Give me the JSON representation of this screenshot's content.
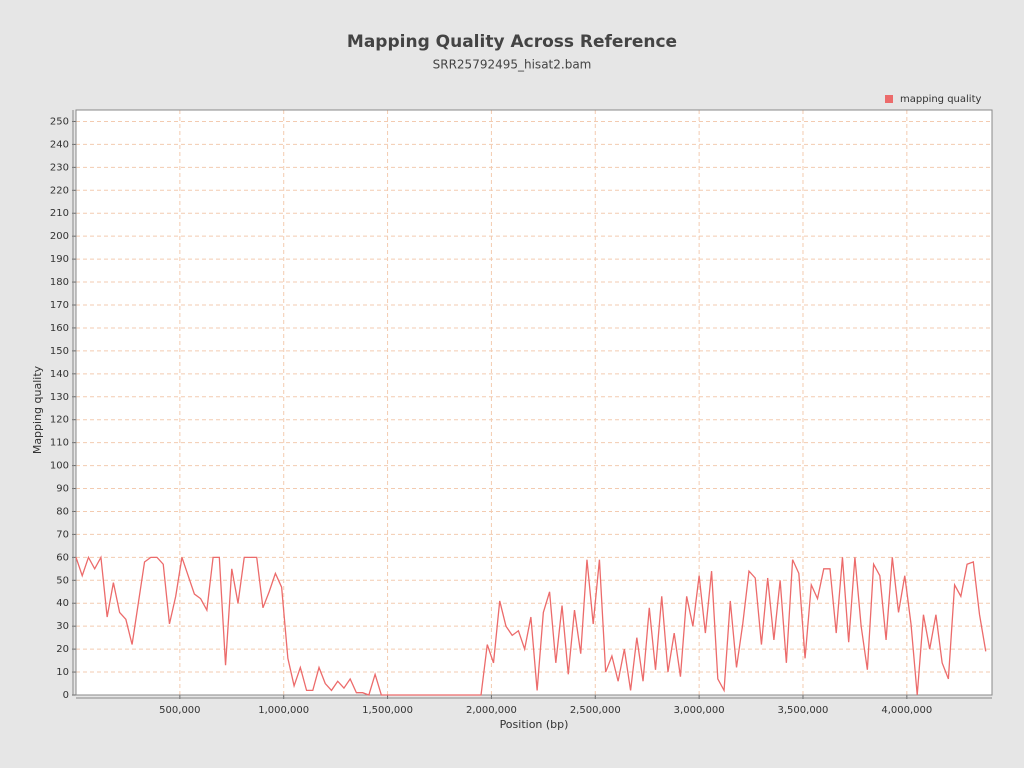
{
  "chart_data": {
    "type": "line",
    "title": "Mapping Quality Across Reference",
    "subtitle": "SRR25792495_hisat2.bam",
    "x_label": "Position (bp)",
    "y_label": "Mapping quality",
    "legend_position": "top-right",
    "grid": true,
    "x": [
      0,
      30000,
      60000,
      90000,
      120000,
      150000,
      180000,
      210000,
      240000,
      270000,
      300000,
      330000,
      360000,
      390000,
      420000,
      450000,
      480000,
      510000,
      540000,
      570000,
      600000,
      630000,
      660000,
      690000,
      720000,
      750000,
      780000,
      810000,
      840000,
      870000,
      900000,
      930000,
      960000,
      990000,
      1020000,
      1050000,
      1080000,
      1110000,
      1140000,
      1170000,
      1200000,
      1230000,
      1260000,
      1290000,
      1320000,
      1350000,
      1380000,
      1410000,
      1440000,
      1470000,
      1500000,
      1530000,
      1560000,
      1590000,
      1620000,
      1650000,
      1680000,
      1710000,
      1740000,
      1770000,
      1800000,
      1830000,
      1860000,
      1890000,
      1920000,
      1950000,
      1980000,
      2010000,
      2040000,
      2070000,
      2100000,
      2130000,
      2160000,
      2190000,
      2220000,
      2250000,
      2280000,
      2310000,
      2340000,
      2370000,
      2400000,
      2430000,
      2460000,
      2490000,
      2520000,
      2550000,
      2580000,
      2610000,
      2640000,
      2670000,
      2700000,
      2730000,
      2760000,
      2790000,
      2820000,
      2850000,
      2880000,
      2910000,
      2940000,
      2970000,
      3000000,
      3030000,
      3060000,
      3090000,
      3120000,
      3150000,
      3180000,
      3210000,
      3240000,
      3270000,
      3300000,
      3330000,
      3360000,
      3390000,
      3420000,
      3450000,
      3480000,
      3510000,
      3540000,
      3570000,
      3600000,
      3630000,
      3660000,
      3690000,
      3720000,
      3750000,
      3780000,
      3810000,
      3840000,
      3870000,
      3900000,
      3930000,
      3960000,
      3990000,
      4020000,
      4050000,
      4080000,
      4110000,
      4140000,
      4170000,
      4200000,
      4230000,
      4260000,
      4290000,
      4320000,
      4350000,
      4380000
    ],
    "series": [
      {
        "name": "mapping quality",
        "color": "#ec6b6b",
        "values": [
          60,
          52,
          60,
          55,
          60,
          34,
          49,
          36,
          33,
          22,
          40,
          58,
          60,
          60,
          57,
          31,
          43,
          60,
          52,
          44,
          42,
          37,
          60,
          60,
          13,
          55,
          40,
          60,
          60,
          60,
          38,
          45,
          53,
          47,
          16,
          4,
          12,
          2,
          2,
          12,
          5,
          2,
          6,
          3,
          7,
          1,
          1,
          0,
          9,
          0,
          0,
          0,
          0,
          0,
          0,
          0,
          0,
          0,
          0,
          0,
          0,
          0,
          0,
          0,
          0,
          0,
          22,
          14,
          41,
          30,
          26,
          28,
          20,
          34,
          2,
          36,
          45,
          14,
          39,
          9,
          37,
          18,
          59,
          31,
          59,
          10,
          17,
          6,
          20,
          2,
          25,
          6,
          38,
          11,
          43,
          10,
          27,
          8,
          43,
          30,
          52,
          27,
          54,
          7,
          2,
          41,
          12,
          31,
          54,
          51,
          22,
          51,
          24,
          50,
          14,
          59,
          53,
          16,
          48,
          42,
          55,
          55,
          27,
          60,
          23,
          60,
          30,
          11,
          57,
          52,
          24,
          60,
          36,
          52,
          31,
          0,
          35,
          20,
          35,
          14,
          7,
          48,
          43,
          57,
          58,
          35,
          19
        ]
      }
    ],
    "xlim": [
      0,
      4410000
    ],
    "xticks": [
      {
        "value": 500000,
        "label": "500,000"
      },
      {
        "value": 1000000,
        "label": "1,000,000"
      },
      {
        "value": 1500000,
        "label": "1,500,000"
      },
      {
        "value": 2000000,
        "label": "2,000,000"
      },
      {
        "value": 2500000,
        "label": "2,500,000"
      },
      {
        "value": 3000000,
        "label": "3,000,000"
      },
      {
        "value": 3500000,
        "label": "3,500,000"
      },
      {
        "value": 4000000,
        "label": "4,000,000"
      }
    ],
    "ylim": [
      0,
      255
    ],
    "yticks": [
      0,
      10,
      20,
      30,
      40,
      50,
      60,
      70,
      80,
      90,
      100,
      110,
      120,
      130,
      140,
      150,
      160,
      170,
      180,
      190,
      200,
      210,
      220,
      230,
      240,
      250
    ]
  }
}
